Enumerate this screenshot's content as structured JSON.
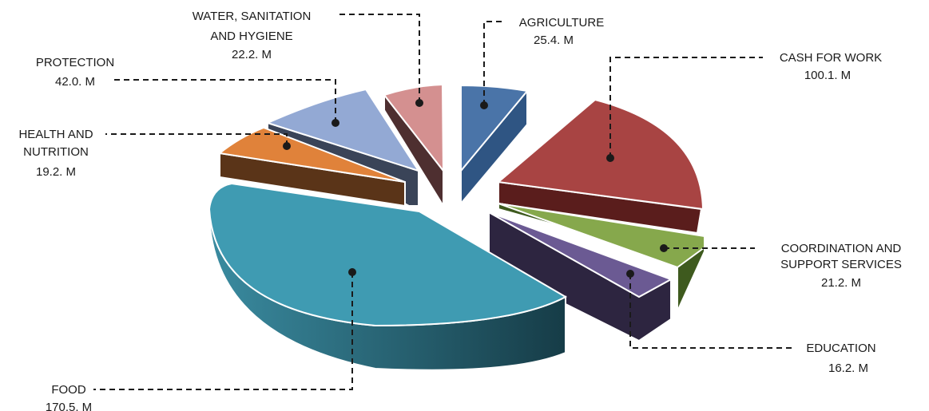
{
  "chart_data": {
    "type": "pie",
    "style": "3d-exploded",
    "unit": "M",
    "slices": [
      {
        "id": "agriculture",
        "label_lines": [
          "AGRICULTURE",
          "25.4. M"
        ],
        "value": 25.4,
        "color": "#4a74a8",
        "side": "#2f5583"
      },
      {
        "id": "cash",
        "label_lines": [
          "CASH FOR WORK",
          "100.1. M"
        ],
        "value": 100.1,
        "color": "#a84443",
        "side": "#5a1d1c"
      },
      {
        "id": "coordination",
        "label_lines": [
          "COORDINATION AND",
          "SUPPORT SERVICES",
          "21.2. M"
        ],
        "value": 21.2,
        "color": "#86a84c",
        "side": "#3e5a1e"
      },
      {
        "id": "education",
        "label_lines": [
          "EDUCATION",
          "16.2. M"
        ],
        "value": 16.2,
        "color": "#6b5a93",
        "side": "#2d2540"
      },
      {
        "id": "food",
        "label_lines": [
          "FOOD",
          "170.5. M"
        ],
        "value": 170.5,
        "color": "#3f9bb2",
        "side": "#1f5868"
      },
      {
        "id": "health",
        "label_lines": [
          "HEALTH AND",
          "NUTRITION",
          "19.2. M"
        ],
        "value": 19.2,
        "color": "#e0823a",
        "side": "#5a3418"
      },
      {
        "id": "protection",
        "label_lines": [
          "PROTECTION",
          "42.0. M"
        ],
        "value": 42.0,
        "color": "#93a9d4",
        "side": "#3a4458"
      },
      {
        "id": "wash",
        "label_lines": [
          "WATER, SANITATION",
          "AND HYGIENE",
          "22.2. M"
        ],
        "value": 22.2,
        "color": "#d49090",
        "side": "#4e2f30"
      }
    ]
  }
}
